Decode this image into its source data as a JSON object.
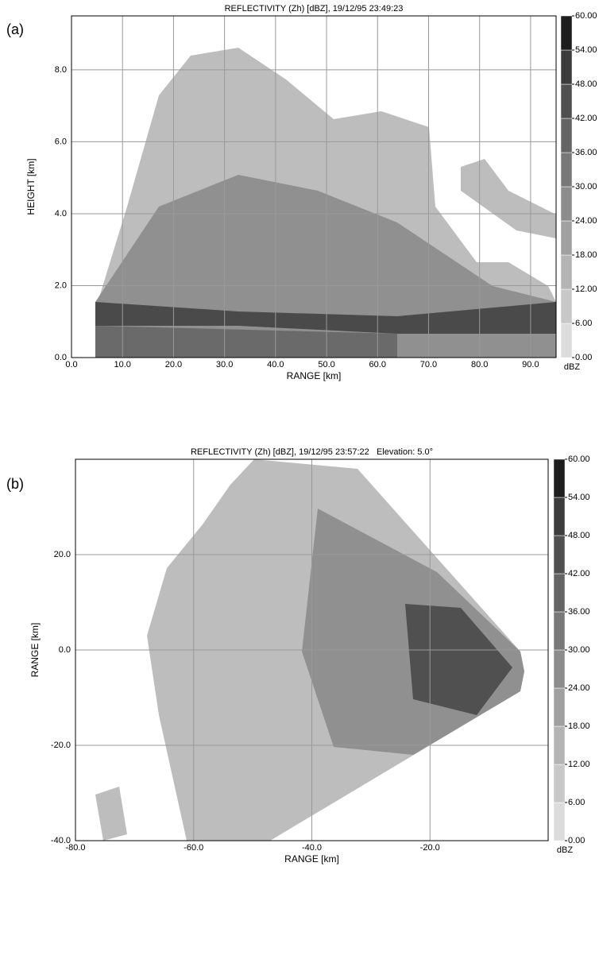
{
  "chart_data": [
    {
      "type": "heatmap",
      "panel_label": "(a)",
      "title": "REFLECTIVITY (Zh) [dBZ], 19/12/95 23:49:23",
      "xlabel": "RANGE [km]",
      "ylabel": "HEIGHT [km]",
      "xlim": [
        0,
        95
      ],
      "ylim": [
        0,
        9.5
      ],
      "xticks": [
        {
          "value": 0,
          "label": "0.0"
        },
        {
          "value": 10,
          "label": "10.0"
        },
        {
          "value": 20,
          "label": "20.0"
        },
        {
          "value": 30,
          "label": "30.0"
        },
        {
          "value": 40,
          "label": "40.0"
        },
        {
          "value": 50,
          "label": "50.0"
        },
        {
          "value": 60,
          "label": "60.0"
        },
        {
          "value": 70,
          "label": "70.0"
        },
        {
          "value": 80,
          "label": "80.0"
        },
        {
          "value": 90,
          "label": "90.0"
        }
      ],
      "yticks": [
        {
          "value": 0,
          "label": "0.0"
        },
        {
          "value": 2,
          "label": "2.0"
        },
        {
          "value": 4,
          "label": "4.0"
        },
        {
          "value": 6,
          "label": "6.0"
        },
        {
          "value": 8,
          "label": "8.0"
        }
      ],
      "grid": true,
      "colorbar": {
        "label": "dBZ",
        "lim": [
          0,
          60
        ],
        "ticks": [
          {
            "value": 0,
            "label": "0.00"
          },
          {
            "value": 6,
            "label": "6.00"
          },
          {
            "value": 12,
            "label": "12.00"
          },
          {
            "value": 18,
            "label": "18.00"
          },
          {
            "value": 24,
            "label": "24.00"
          },
          {
            "value": 30,
            "label": "30.00"
          },
          {
            "value": 36,
            "label": "36.00"
          },
          {
            "value": 42,
            "label": "42.00"
          },
          {
            "value": 48,
            "label": "48.00"
          },
          {
            "value": 54,
            "label": "54.00"
          },
          {
            "value": 60,
            "label": "60.00"
          }
        ],
        "colors": [
          "#dcdcdc",
          "#c8c8c8",
          "#b4b4b4",
          "#a0a0a0",
          "#8c8c8c",
          "#787878",
          "#646464",
          "#505050",
          "#3c3c3c",
          "#1e1e1e"
        ]
      }
    },
    {
      "type": "heatmap",
      "panel_label": "(b)",
      "title": "REFLECTIVITY (Zh) [dBZ], 19/12/95 23:57:22   Elevation: 5.0°",
      "xlabel": "RANGE [km]",
      "ylabel": "RANGE [km]",
      "xlim": [
        -80,
        0
      ],
      "ylim": [
        -40,
        40
      ],
      "xticks": [
        {
          "value": -80,
          "label": "-80.0"
        },
        {
          "value": -60,
          "label": "-60.0"
        },
        {
          "value": -40,
          "label": "-40.0"
        },
        {
          "value": -20,
          "label": "-20.0"
        }
      ],
      "yticks": [
        {
          "value": -40,
          "label": "-40.0"
        },
        {
          "value": -20,
          "label": "-20.0"
        },
        {
          "value": 0,
          "label": "0.0"
        },
        {
          "value": 20,
          "label": "20.0"
        }
      ],
      "grid": true,
      "colorbar": {
        "label": "dBZ",
        "lim": [
          0,
          60
        ],
        "ticks": [
          {
            "value": 0,
            "label": "0.00"
          },
          {
            "value": 6,
            "label": "6.00"
          },
          {
            "value": 12,
            "label": "12.00"
          },
          {
            "value": 18,
            "label": "18.00"
          },
          {
            "value": 24,
            "label": "24.00"
          },
          {
            "value": 30,
            "label": "30.00"
          },
          {
            "value": 36,
            "label": "36.00"
          },
          {
            "value": 42,
            "label": "42.00"
          },
          {
            "value": 48,
            "label": "48.00"
          },
          {
            "value": 54,
            "label": "54.00"
          },
          {
            "value": 60,
            "label": "60.00"
          }
        ],
        "colors": [
          "#dcdcdc",
          "#c8c8c8",
          "#b4b4b4",
          "#a0a0a0",
          "#8c8c8c",
          "#787878",
          "#646464",
          "#505050",
          "#3c3c3c",
          "#1e1e1e"
        ]
      }
    }
  ]
}
